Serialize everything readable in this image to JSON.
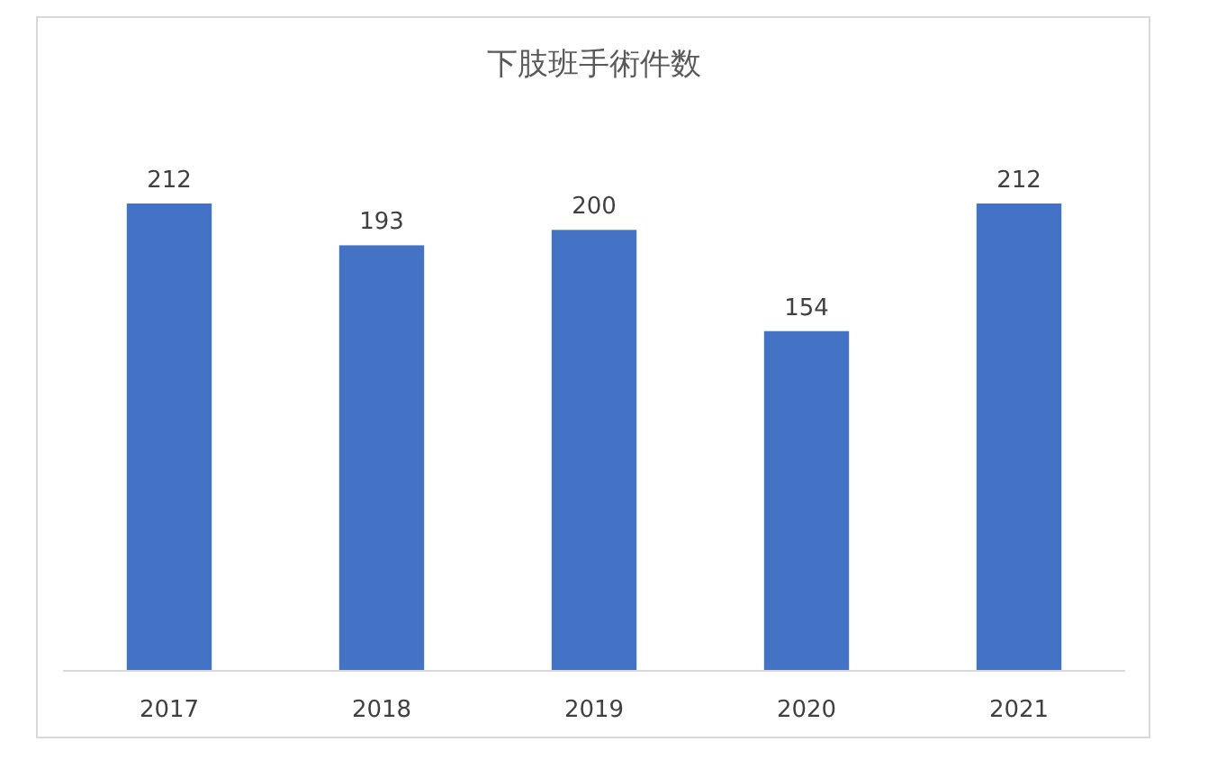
{
  "chart_data": {
    "type": "bar",
    "title": "下肢班手術件数",
    "categories": [
      "2017",
      "2018",
      "2019",
      "2020",
      "2021"
    ],
    "values": [
      212,
      193,
      200,
      154,
      212
    ],
    "color": "#4472c4",
    "data_labels": true
  }
}
